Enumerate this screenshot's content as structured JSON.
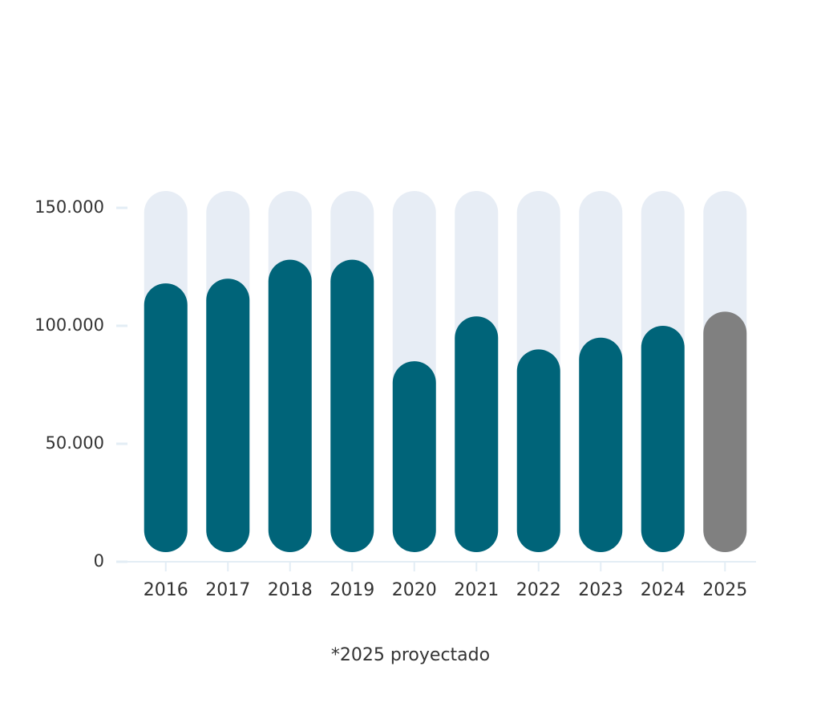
{
  "chart_data": {
    "type": "bar",
    "categories": [
      "2016",
      "2017",
      "2018",
      "2019",
      "2020",
      "2021",
      "2022",
      "2023",
      "2024",
      "2025"
    ],
    "values": [
      118000,
      120000,
      128000,
      128000,
      85000,
      104000,
      90000,
      95000,
      100000,
      106000
    ],
    "colors": [
      "#006479",
      "#006479",
      "#006479",
      "#006479",
      "#006479",
      "#006479",
      "#006479",
      "#006479",
      "#006479",
      "#808080"
    ],
    "ylim": [
      0,
      150000
    ],
    "yticks": [
      0,
      {
        "value": 50000,
        "label": "50.000"
      },
      {
        "value": 100000,
        "label": "100.000"
      },
      {
        "value": 150000,
        "label": "150.000"
      }
    ],
    "annotation": "*2025 proyectado"
  }
}
